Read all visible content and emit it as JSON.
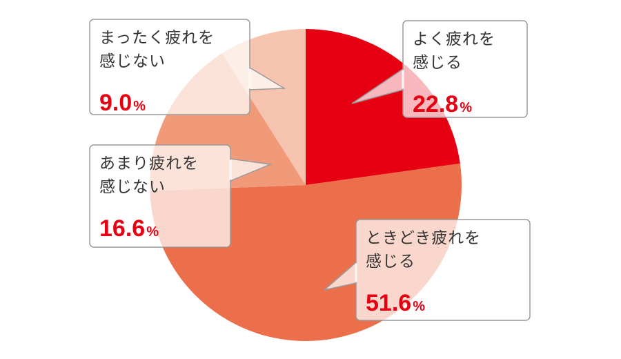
{
  "chart_data": {
    "type": "pie",
    "start_angle_deg": 0,
    "direction": "clockwise",
    "slices": [
      {
        "label_lines": [
          "よく疲れを",
          "感じる"
        ],
        "value": 22.8,
        "value_text": "22.8",
        "unit": "%",
        "color": "#e60012"
      },
      {
        "label_lines": [
          "ときどき疲れを",
          "感じる"
        ],
        "value": 51.6,
        "value_text": "51.6",
        "unit": "%",
        "color": "#ec6f4c"
      },
      {
        "label_lines": [
          "あまり疲れを",
          "感じない"
        ],
        "value": 16.6,
        "value_text": "16.6",
        "unit": "%",
        "color": "#f19a7a"
      },
      {
        "label_lines": [
          "まったく疲れを",
          "感じない"
        ],
        "value": 9.0,
        "value_text": "9.0",
        "unit": "%",
        "color": "#f6c3ae"
      }
    ],
    "value_text_color": "#e60012"
  }
}
